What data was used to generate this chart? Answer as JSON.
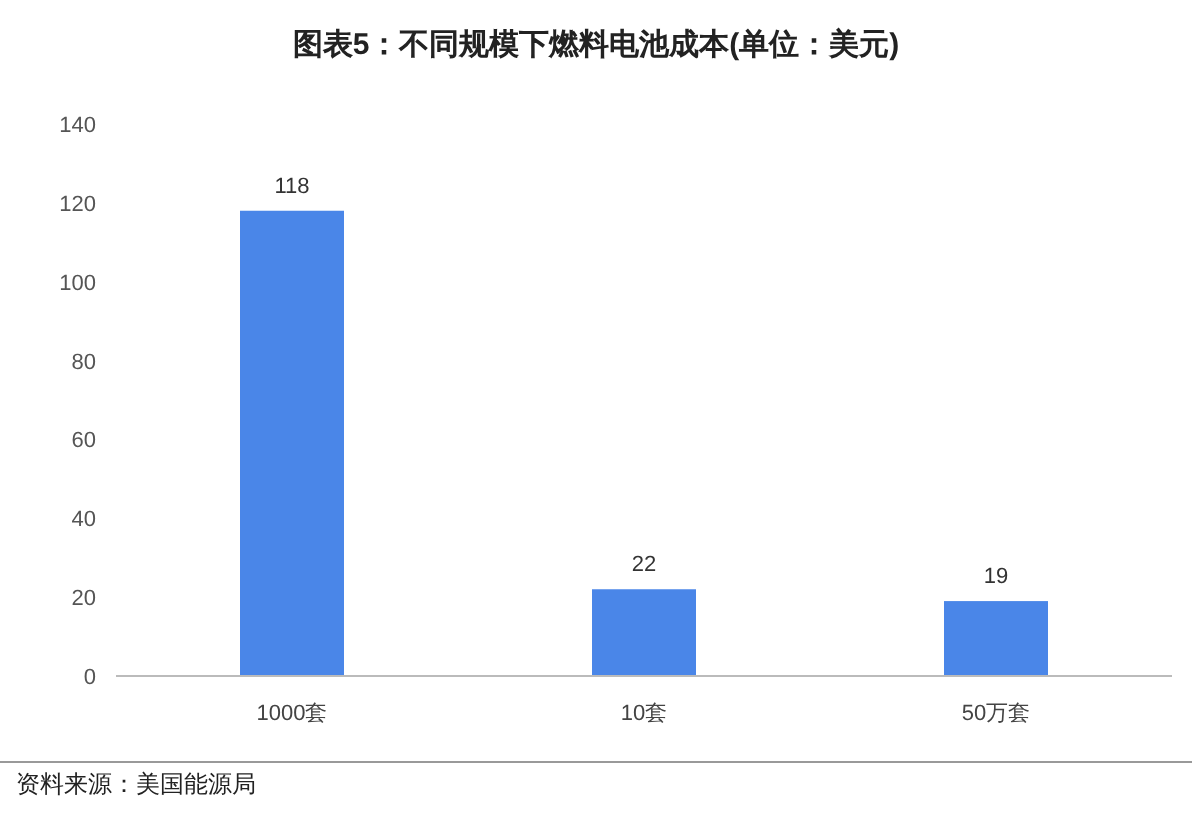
{
  "chart_data": {
    "type": "bar",
    "title": "图表5：不同规模下燃料电池成本(单位：美元)",
    "categories": [
      "1000套",
      "10套",
      "50万套"
    ],
    "values": [
      118,
      22,
      19
    ],
    "color": "#4a86e8",
    "ylim": [
      0,
      140
    ],
    "yticks": [
      0,
      20,
      40,
      60,
      80,
      100,
      120,
      140
    ],
    "data_labels": true,
    "annotations": [
      "资料来源：美国能源局"
    ]
  }
}
